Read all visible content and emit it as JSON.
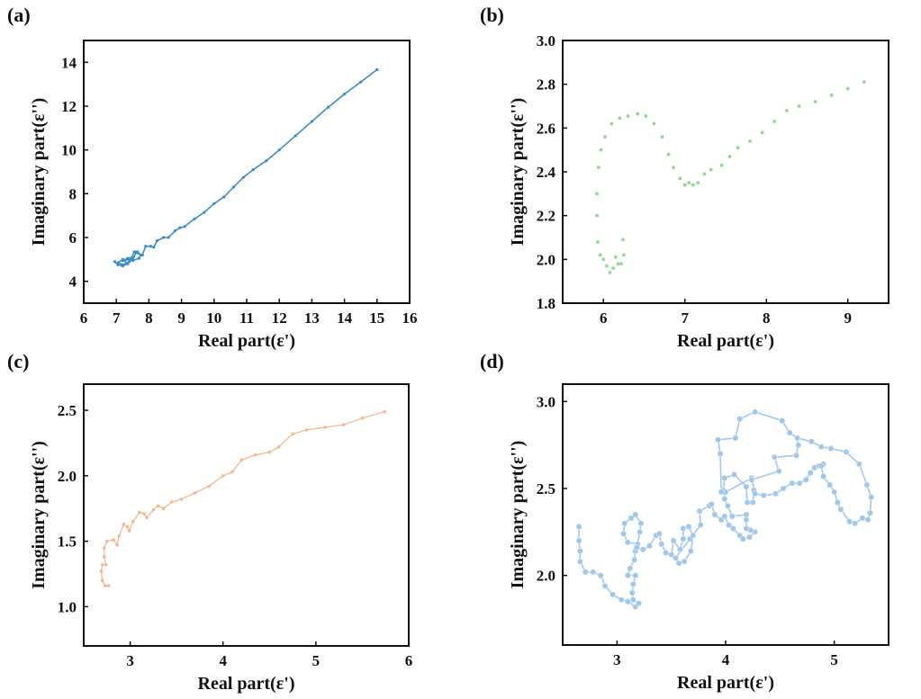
{
  "chart_data": [
    {
      "panel": "(a)",
      "type": "line",
      "marker": "dot",
      "color": "#3a8fc7",
      "xlabel": "Real part(ε')",
      "ylabel": "Imaginary part(ε'')",
      "xlim": [
        6,
        16
      ],
      "ylim": [
        3,
        15
      ],
      "xticks": [
        6,
        7,
        8,
        9,
        10,
        11,
        12,
        13,
        14,
        15,
        16
      ],
      "yticks": [
        4,
        6,
        8,
        10,
        12,
        14
      ],
      "x": [
        6.95,
        7.05,
        7.2,
        7.35,
        7.2,
        7.05,
        7.2,
        7.4,
        7.5,
        7.35,
        7.2,
        7.45,
        7.55,
        7.65,
        7.75,
        7.7,
        7.5,
        7.6,
        7.8,
        7.9,
        8.05,
        8.15,
        8.25,
        8.45,
        8.6,
        8.8,
        8.95,
        9.1,
        9.4,
        9.7,
        10.0,
        10.3,
        10.6,
        10.9,
        11.2,
        11.6,
        12.0,
        12.5,
        13.0,
        13.5,
        14.0,
        14.5,
        15.0
      ],
      "y": [
        4.9,
        4.75,
        4.7,
        4.8,
        5.0,
        4.85,
        4.75,
        4.9,
        5.1,
        5.05,
        4.95,
        5.0,
        5.35,
        5.35,
        5.2,
        5.05,
        4.95,
        5.3,
        5.2,
        5.6,
        5.6,
        5.55,
        5.85,
        6.0,
        6.0,
        6.3,
        6.45,
        6.5,
        6.85,
        7.15,
        7.55,
        7.85,
        8.3,
        8.75,
        9.1,
        9.5,
        10.0,
        10.65,
        11.3,
        11.95,
        12.55,
        13.1,
        13.67
      ]
    },
    {
      "panel": "(b)",
      "type": "line",
      "marker": "square",
      "color": "#90d890",
      "xlabel": "Real part(ε')",
      "ylabel": "Imaginary part(ε'')",
      "xlim": [
        5.5,
        9.5
      ],
      "ylim": [
        1.8,
        3.0
      ],
      "xticks": [
        6,
        7,
        8,
        9
      ],
      "yticks": [
        1.8,
        2.0,
        2.2,
        2.4,
        2.6,
        2.8,
        3.0
      ],
      "ytick_labels": [
        "1.8",
        "2.0",
        "2.2",
        "2.4",
        "2.6",
        "2.8",
        "3.0"
      ],
      "x": [
        6.24,
        6.25,
        6.22,
        6.18,
        6.15,
        6.12,
        6.08,
        6.04,
        6.0,
        5.96,
        5.93,
        5.92,
        5.92,
        5.94,
        5.97,
        6.02,
        6.1,
        6.2,
        6.3,
        6.42,
        6.52,
        6.62,
        6.72,
        6.8,
        6.86,
        6.94,
        7.0,
        7.05,
        7.1,
        7.16,
        7.24,
        7.32,
        7.45,
        7.55,
        7.65,
        7.8,
        7.95,
        8.1,
        8.25,
        8.4,
        8.6,
        8.8,
        9.0,
        9.2
      ],
      "y": [
        2.09,
        2.02,
        1.98,
        1.98,
        2.01,
        1.96,
        1.94,
        1.97,
        2.0,
        2.02,
        2.08,
        2.2,
        2.3,
        2.42,
        2.5,
        2.56,
        2.62,
        2.645,
        2.655,
        2.665,
        2.655,
        2.62,
        2.56,
        2.48,
        2.42,
        2.37,
        2.34,
        2.35,
        2.34,
        2.35,
        2.39,
        2.41,
        2.43,
        2.47,
        2.51,
        2.54,
        2.58,
        2.63,
        2.68,
        2.7,
        2.72,
        2.75,
        2.78,
        2.81
      ]
    },
    {
      "panel": "(c)",
      "type": "line",
      "marker": "circle-small",
      "color": "#f5b48a",
      "xlabel": "Real part(ε')",
      "ylabel": "Imaginary part(ε'')",
      "xlim": [
        2.5,
        6
      ],
      "ylim": [
        0.7,
        2.7
      ],
      "xticks": [
        3,
        4,
        5,
        6
      ],
      "yticks": [
        1.0,
        1.5,
        2.0,
        2.5
      ],
      "ytick_labels": [
        "1.0",
        "1.5",
        "2.0",
        "2.5"
      ],
      "x": [
        2.77,
        2.73,
        2.7,
        2.69,
        2.7,
        2.74,
        2.72,
        2.72,
        2.75,
        2.82,
        2.86,
        2.88,
        2.93,
        2.97,
        2.99,
        3.03,
        3.1,
        3.15,
        3.18,
        3.25,
        3.3,
        3.36,
        3.45,
        3.55,
        3.7,
        3.85,
        4.0,
        4.1,
        4.2,
        4.35,
        4.5,
        4.6,
        4.75,
        4.9,
        5.1,
        5.3,
        5.5,
        5.74
      ],
      "y": [
        1.16,
        1.16,
        1.2,
        1.27,
        1.32,
        1.32,
        1.38,
        1.45,
        1.5,
        1.51,
        1.47,
        1.54,
        1.63,
        1.61,
        1.58,
        1.65,
        1.72,
        1.71,
        1.68,
        1.74,
        1.77,
        1.75,
        1.8,
        1.82,
        1.87,
        1.92,
        2.0,
        2.03,
        2.12,
        2.16,
        2.18,
        2.22,
        2.32,
        2.35,
        2.37,
        2.39,
        2.44,
        2.49
      ]
    },
    {
      "panel": "(d)",
      "type": "line",
      "marker": "circle",
      "color": "#9fc8ec",
      "xlabel": "Real part(ε')",
      "ylabel": "Imaginary part(ε'')",
      "xlim": [
        2.5,
        5.5
      ],
      "ylim": [
        1.6,
        3.1
      ],
      "xticks": [
        3,
        4,
        5
      ],
      "yticks": [
        2.0,
        2.5,
        3.0
      ],
      "ytick_labels": [
        "2.0",
        "2.5",
        "3.0"
      ],
      "x": [
        2.65,
        2.65,
        2.66,
        2.66,
        2.71,
        2.78,
        2.85,
        2.89,
        2.96,
        3.04,
        3.1,
        3.17,
        3.2,
        3.15,
        3.14,
        3.15,
        3.17,
        3.1,
        3.12,
        3.16,
        3.17,
        3.19,
        3.1,
        3.06,
        3.07,
        3.13,
        3.17,
        3.22,
        3.21,
        3.18,
        3.24,
        3.3,
        3.36,
        3.39,
        3.41,
        3.45,
        3.5,
        3.52,
        3.58,
        3.61,
        3.61,
        3.66,
        3.7,
        3.68,
        3.62,
        3.57,
        3.54,
        3.67,
        3.77,
        3.76,
        3.85,
        3.87,
        3.9,
        3.96,
        3.99,
        4.03,
        4.07,
        4.13,
        4.16,
        4.22,
        4.27,
        4.23,
        4.19,
        4.19,
        4.19,
        4.06,
        4.02,
        3.99,
        3.98,
        3.99,
        4.08,
        4.19,
        4.2,
        4.25,
        4.26,
        4.24,
        4.0,
        3.96,
        3.95,
        3.93,
        4.09,
        4.13,
        4.27,
        4.52,
        4.59,
        4.66,
        4.67,
        4.65,
        4.45,
        4.49,
        4.24,
        4.27,
        4.35,
        4.46,
        4.53,
        4.61,
        4.68,
        4.74,
        4.78,
        4.82,
        4.86,
        4.9,
        4.88,
        4.9,
        4.96,
        5.0,
        5.03,
        5.06,
        5.14,
        5.19,
        5.26,
        5.31,
        5.33,
        5.34,
        5.3,
        5.23,
        5.11,
        4.97,
        4.88,
        4.79,
        4.66
      ],
      "y": [
        2.28,
        2.2,
        2.14,
        2.08,
        2.02,
        2.02,
        2.0,
        1.94,
        1.89,
        1.86,
        1.85,
        1.82,
        1.84,
        1.86,
        1.9,
        1.95,
        2.0,
        2.0,
        2.04,
        2.09,
        2.14,
        2.18,
        2.19,
        2.24,
        2.3,
        2.33,
        2.35,
        2.3,
        2.25,
        2.16,
        2.15,
        2.17,
        2.23,
        2.24,
        2.18,
        2.13,
        2.12,
        2.2,
        2.15,
        2.21,
        2.27,
        2.28,
        2.23,
        2.14,
        2.08,
        2.07,
        2.1,
        2.21,
        2.29,
        2.37,
        2.4,
        2.41,
        2.35,
        2.32,
        2.34,
        2.29,
        2.27,
        2.23,
        2.21,
        2.22,
        2.25,
        2.26,
        2.27,
        2.32,
        2.35,
        2.34,
        2.4,
        2.44,
        2.49,
        2.56,
        2.58,
        2.51,
        2.42,
        2.42,
        2.49,
        2.56,
        2.48,
        2.48,
        2.7,
        2.78,
        2.79,
        2.9,
        2.94,
        2.89,
        2.82,
        2.79,
        2.75,
        2.69,
        2.68,
        2.6,
        2.55,
        2.47,
        2.46,
        2.47,
        2.5,
        2.53,
        2.53,
        2.55,
        2.59,
        2.62,
        2.63,
        2.64,
        2.63,
        2.57,
        2.52,
        2.48,
        2.42,
        2.38,
        2.31,
        2.3,
        2.33,
        2.32,
        2.36,
        2.45,
        2.52,
        2.64,
        2.71,
        2.73,
        2.74,
        2.77,
        2.79
      ]
    }
  ]
}
